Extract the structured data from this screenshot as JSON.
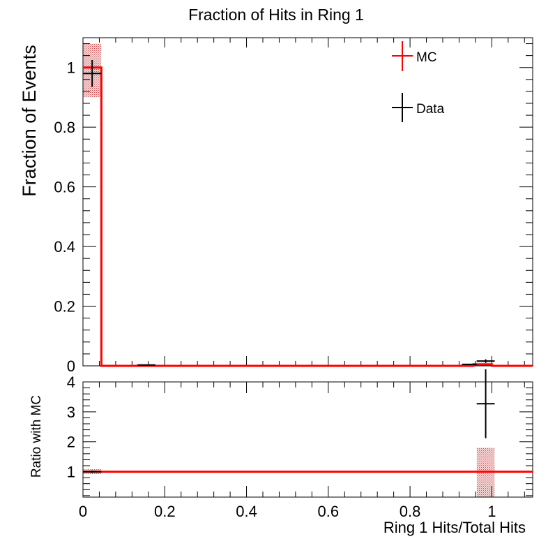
{
  "chart_data": [
    {
      "type": "bar",
      "panel": "main",
      "title": "Fraction of Hits in Ring 1",
      "xlabel": "",
      "ylabel": "Fraction of Events",
      "xlim": [
        0,
        1.1
      ],
      "ylim": [
        0,
        1.1
      ],
      "yticks": [
        0,
        0.2,
        0.4,
        0.6,
        0.8,
        1
      ],
      "ytick_labels": [
        "0",
        "0.2",
        "0.4",
        "0.6",
        "0.8",
        "1"
      ],
      "legend_position": "top-right",
      "legend": [
        {
          "label": "MC",
          "color": "#ff0000"
        },
        {
          "label": "Data",
          "color": "#000000"
        }
      ],
      "mc": {
        "color": "#ff0000",
        "bin_edges": [
          0,
          0.045,
          0.955,
          1.0,
          1.1
        ],
        "values": [
          1.0,
          0.0,
          0.005,
          0.0
        ],
        "band": [
          {
            "x0": 0.0,
            "x1": 0.045,
            "lo": 0.9,
            "hi": 1.08
          },
          {
            "x0": 0.955,
            "x1": 1.0,
            "lo": 0.0,
            "hi": 0.01
          }
        ]
      },
      "data": {
        "color": "#000000",
        "points": [
          {
            "x": 0.0225,
            "xerr": 0.0225,
            "y": 0.98,
            "yerr": 0.045
          },
          {
            "x": 0.155,
            "xerr": 0.022,
            "y": 0.003,
            "yerr": 0.002
          },
          {
            "x": 0.945,
            "xerr": 0.018,
            "y": 0.005,
            "yerr": 0.002
          },
          {
            "x": 0.985,
            "xerr": 0.022,
            "y": 0.016,
            "yerr": 0.006
          }
        ]
      }
    },
    {
      "type": "line",
      "panel": "ratio",
      "xlabel": "Ring 1 Hits/Total Hits",
      "ylabel": "Ratio with MC",
      "xlim": [
        0,
        1.1
      ],
      "ylim": [
        0.15,
        4.0
      ],
      "xticks": [
        0,
        0.2,
        0.4,
        0.6,
        0.8,
        1
      ],
      "xtick_labels": [
        "0",
        "0.2",
        "0.4",
        "0.6",
        "0.8",
        "1"
      ],
      "yticks": [
        1,
        2,
        3,
        4
      ],
      "ytick_labels": [
        "1",
        "2",
        "3",
        "4"
      ],
      "reference_line": {
        "y": 1,
        "color": "#ff0000"
      },
      "band": [
        {
          "x0": 0.0,
          "x1": 0.045,
          "lo": 0.92,
          "hi": 1.08
        },
        {
          "x0": 0.963,
          "x1": 1.007,
          "lo": 0.15,
          "hi": 1.8
        }
      ],
      "points": [
        {
          "x": 0.0225,
          "xerr": 0.0225,
          "y": 1.0,
          "yerr": 0.04
        },
        {
          "x": 0.985,
          "xerr": 0.022,
          "y": 3.27,
          "yerr": 1.15
        }
      ]
    }
  ]
}
